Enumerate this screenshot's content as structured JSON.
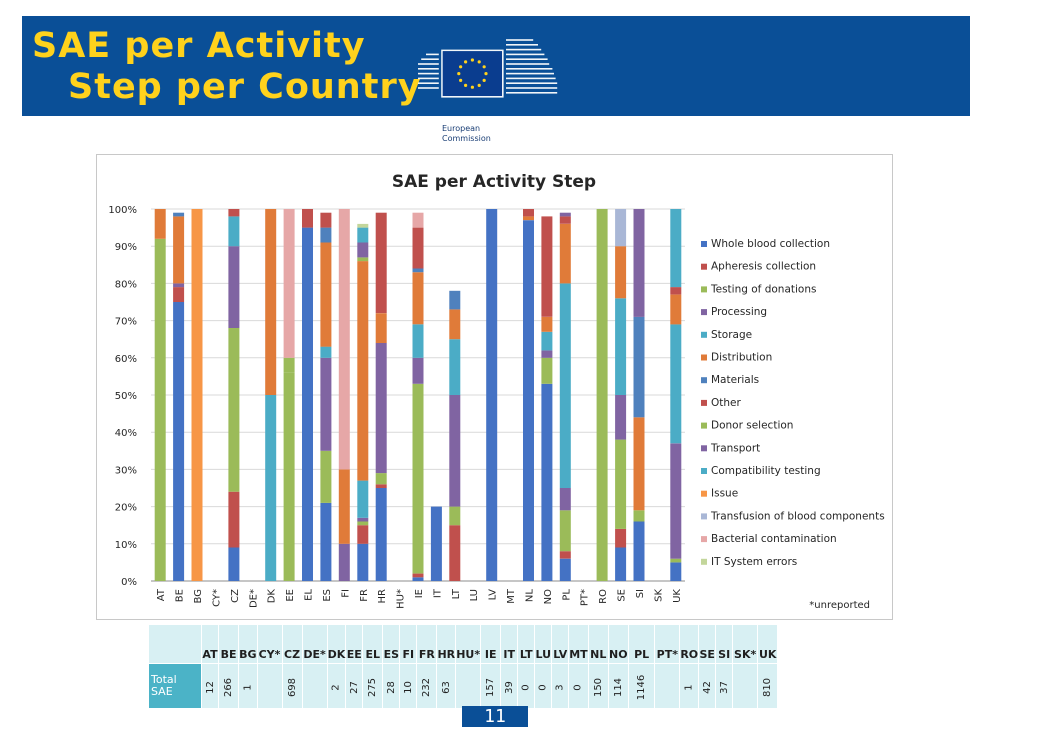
{
  "header": {
    "title_line1": "SAE per Activity",
    "title_line2": "Step per Country",
    "logo_text_line1": "European",
    "logo_text_line2": "Commission"
  },
  "colors": {
    "banner": "#0a4f97",
    "title": "#ffd21c",
    "table_bg": "#d8f0f3",
    "table_label": "#4bb3c7"
  },
  "page_number": "11",
  "chart_data": {
    "type": "bar",
    "stacked": true,
    "title": "SAE per Activity Step",
    "footnote": "*unreported",
    "ylim": [
      0,
      100
    ],
    "yticks": [
      "0%",
      "10%",
      "20%",
      "30%",
      "40%",
      "50%",
      "60%",
      "70%",
      "80%",
      "90%",
      "100%"
    ],
    "grid": true,
    "legend_position": "right",
    "categories": [
      "AT",
      "BE",
      "BG",
      "CY*",
      "CZ",
      "DE*",
      "DK",
      "EE",
      "EL",
      "ES",
      "FI",
      "FR",
      "HR",
      "HU*",
      "IE",
      "IT",
      "LT",
      "LU",
      "LV",
      "MT",
      "NL",
      "NO",
      "PL",
      "PT*",
      "RO",
      "SE",
      "SI",
      "SK",
      "UK"
    ],
    "series": [
      {
        "name": "Whole blood collection",
        "color": "#4472c4",
        "values": [
          0,
          75,
          0,
          0,
          9,
          0,
          0,
          0,
          95,
          21,
          0,
          10,
          25,
          0,
          1,
          20,
          0,
          0,
          100,
          0,
          97,
          53,
          6,
          0,
          0,
          9,
          16,
          0,
          5
        ]
      },
      {
        "name": "Apheresis collection",
        "color": "#c0504d",
        "values": [
          0,
          4,
          0,
          0,
          15,
          0,
          0,
          0,
          0,
          0,
          0,
          5,
          1,
          0,
          1,
          0,
          15,
          0,
          0,
          0,
          0,
          0,
          2,
          0,
          0,
          5,
          0,
          0,
          0
        ]
      },
      {
        "name": "Testing of donations",
        "color": "#9bbb59",
        "values": [
          92,
          0,
          0,
          0,
          44,
          0,
          0,
          56,
          0,
          14,
          0,
          1,
          3,
          0,
          51,
          0,
          5,
          0,
          0,
          0,
          0,
          7,
          11,
          0,
          100,
          24,
          3,
          0,
          1
        ]
      },
      {
        "name": "Processing",
        "color": "#8064a2",
        "values": [
          0,
          1,
          0,
          0,
          22,
          0,
          0,
          0,
          0,
          25,
          10,
          1,
          35,
          0,
          7,
          0,
          30,
          0,
          0,
          0,
          0,
          2,
          6,
          0,
          0,
          12,
          0,
          0,
          31
        ]
      },
      {
        "name": "Storage",
        "color": "#4bacc6",
        "values": [
          0,
          0,
          0,
          0,
          8,
          0,
          50,
          0,
          0,
          3,
          0,
          10,
          0,
          0,
          9,
          0,
          15,
          0,
          0,
          0,
          0,
          5,
          55,
          0,
          0,
          26,
          0,
          0,
          32
        ]
      },
      {
        "name": "Distribution",
        "color": "#e07b39",
        "values": [
          8,
          18,
          0,
          0,
          0,
          0,
          50,
          0,
          0,
          28,
          20,
          59,
          8,
          0,
          14,
          0,
          8,
          0,
          0,
          0,
          1,
          4,
          16,
          0,
          0,
          14,
          25,
          0,
          8
        ]
      },
      {
        "name": "Materials",
        "color": "#4f81bd",
        "values": [
          0,
          1,
          0,
          0,
          0,
          0,
          0,
          0,
          0,
          4,
          0,
          0,
          0,
          0,
          1,
          0,
          5,
          0,
          0,
          0,
          0,
          0,
          0,
          0,
          0,
          0,
          27,
          0,
          0
        ]
      },
      {
        "name": "Other",
        "color": "#c0504d",
        "values": [
          0,
          0,
          0,
          0,
          2,
          0,
          0,
          0,
          5,
          4,
          0,
          0,
          27,
          0,
          11,
          0,
          0,
          0,
          0,
          0,
          2,
          27,
          2,
          0,
          0,
          0,
          0,
          0,
          2
        ]
      },
      {
        "name": "Donor selection",
        "color": "#9bbb59",
        "values": [
          0,
          0,
          0,
          0,
          0,
          0,
          0,
          4,
          0,
          0,
          0,
          1,
          0,
          0,
          0,
          0,
          0,
          0,
          0,
          0,
          0,
          0,
          0,
          0,
          0,
          0,
          0,
          0,
          0
        ]
      },
      {
        "name": "Transport",
        "color": "#8064a2",
        "values": [
          0,
          0,
          0,
          0,
          0,
          0,
          0,
          0,
          0,
          0,
          0,
          4,
          0,
          0,
          0,
          0,
          0,
          0,
          0,
          0,
          0,
          0,
          1,
          0,
          0,
          0,
          29,
          0,
          0
        ]
      },
      {
        "name": "Compatibility testing",
        "color": "#4bacc6",
        "values": [
          0,
          0,
          0,
          0,
          0,
          0,
          0,
          0,
          0,
          0,
          0,
          4,
          0,
          0,
          0,
          0,
          0,
          0,
          0,
          0,
          0,
          0,
          0,
          0,
          0,
          0,
          0,
          0,
          21
        ]
      },
      {
        "name": "Issue",
        "color": "#f79646",
        "values": [
          0,
          0,
          100,
          0,
          0,
          0,
          0,
          0,
          0,
          0,
          0,
          0,
          0,
          0,
          0,
          0,
          0,
          0,
          0,
          0,
          0,
          0,
          0,
          0,
          0,
          0,
          0,
          0,
          0
        ]
      },
      {
        "name": "Transfusion of blood components",
        "color": "#a9b7d6",
        "values": [
          0,
          0,
          0,
          0,
          0,
          0,
          0,
          0,
          0,
          0,
          0,
          0,
          0,
          0,
          0,
          0,
          0,
          0,
          0,
          0,
          0,
          0,
          0,
          0,
          0,
          10,
          0,
          0,
          0
        ]
      },
      {
        "name": "Bacterial contamination",
        "color": "#e6a7a7",
        "values": [
          0,
          0,
          0,
          0,
          0,
          0,
          0,
          40,
          0,
          0,
          70,
          0,
          0,
          0,
          4,
          0,
          0,
          0,
          0,
          0,
          0,
          0,
          0,
          0,
          0,
          0,
          0,
          0,
          0
        ]
      },
      {
        "name": "IT System errors",
        "color": "#c3d69b",
        "values": [
          0,
          0,
          0,
          0,
          0,
          0,
          0,
          0,
          0,
          0,
          0,
          1,
          0,
          0,
          0,
          0,
          0,
          0,
          0,
          0,
          0,
          0,
          0,
          0,
          0,
          0,
          0,
          0,
          0
        ]
      }
    ]
  },
  "table": {
    "row_label": "Total SAE",
    "columns": [
      "AT",
      "BE",
      "BG",
      "CY*",
      "CZ",
      "DE*",
      "DK",
      "EE",
      "EL",
      "ES",
      "FI",
      "FR",
      "HR",
      "HU*",
      "IE",
      "IT",
      "LT",
      "LU",
      "LV",
      "MT",
      "NL",
      "NO",
      "PL",
      "PT*",
      "RO",
      "SE",
      "SI",
      "SK*",
      "UK"
    ],
    "values": [
      "12",
      "266",
      "1",
      "",
      "698",
      "",
      "2",
      "27",
      "275",
      "28",
      "10",
      "232",
      "63",
      "",
      "157",
      "39",
      "0",
      "0",
      "3",
      "0",
      "150",
      "114",
      "1146",
      "",
      "1",
      "42",
      "37",
      "",
      "810"
    ]
  }
}
